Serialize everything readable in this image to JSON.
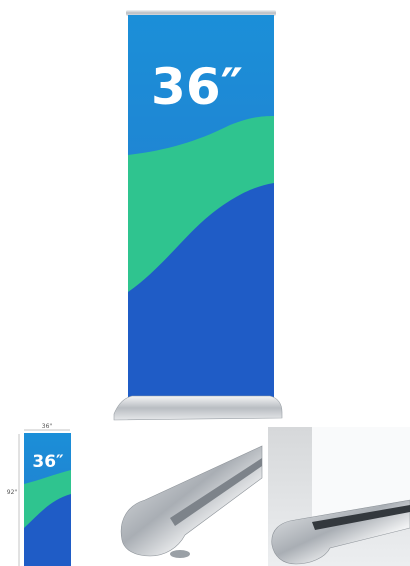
{
  "main_banner_text": "36″",
  "thumbnail_banner_text": "36″",
  "thumbnail_width_label": "36\"",
  "thumbnail_height_label": "92\""
}
